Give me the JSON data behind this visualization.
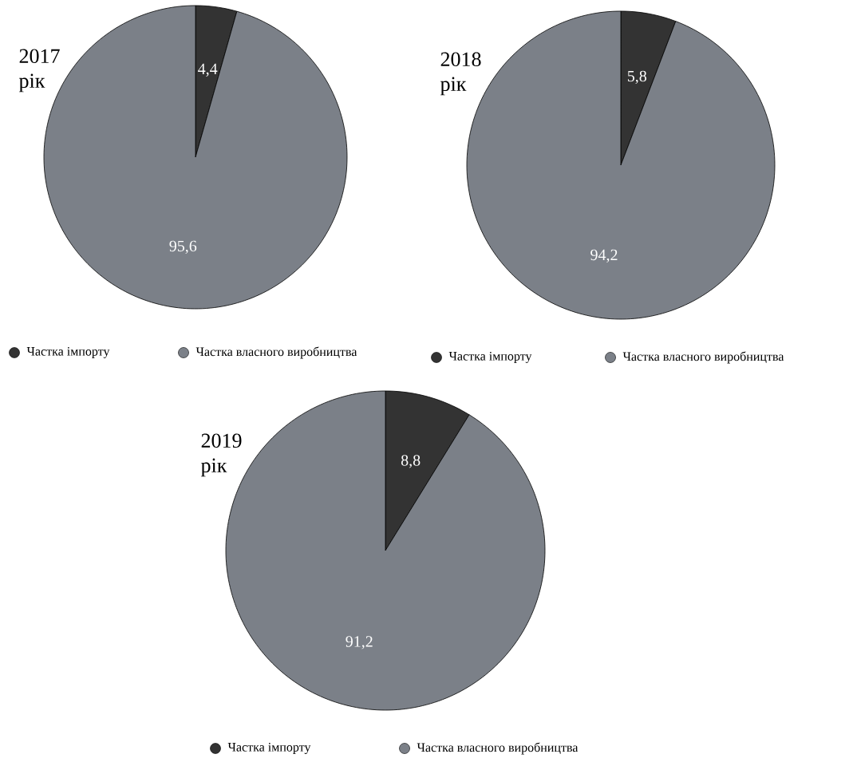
{
  "chart_data": [
    {
      "type": "pie",
      "title": "2017 рік",
      "categories": [
        "Частка імпорту",
        "Частка власного виробництва"
      ],
      "values": [
        4.4,
        95.6
      ],
      "value_labels": [
        "4,4",
        "95,6"
      ],
      "colors": [
        "#333333",
        "#7b8088"
      ],
      "legend": "bottom"
    },
    {
      "type": "pie",
      "title": "2018 рік",
      "categories": [
        "Частка імпорту",
        "Частка власного виробництва"
      ],
      "values": [
        5.8,
        94.2
      ],
      "value_labels": [
        "5,8",
        "94,2"
      ],
      "colors": [
        "#333333",
        "#7b8088"
      ],
      "legend": "bottom"
    },
    {
      "type": "pie",
      "title": "2019 рік",
      "categories": [
        "Частка імпорту",
        "Частка власного виробництва"
      ],
      "values": [
        8.8,
        91.2
      ],
      "value_labels": [
        "8,8",
        "91,2"
      ],
      "colors": [
        "#333333",
        "#7b8088"
      ],
      "legend": "bottom"
    }
  ]
}
